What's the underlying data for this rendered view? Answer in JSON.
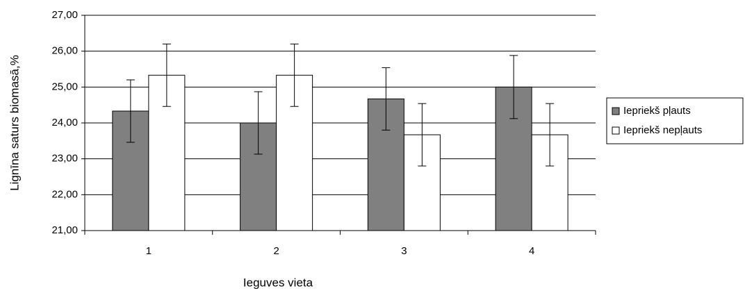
{
  "chart_data": {
    "type": "bar",
    "x_label": "Ieguves vieta",
    "y_label": "Lignīna saturs biomasā,%",
    "categories": [
      "1",
      "2",
      "3",
      "4"
    ],
    "series": [
      {
        "name": "Iepriekš pļauts",
        "color": "#808080",
        "values": [
          24.33,
          24.0,
          24.67,
          25.0
        ],
        "errors": [
          0.87,
          0.87,
          0.87,
          0.88
        ]
      },
      {
        "name": "Iepriekš nepļauts",
        "color": "#ffffff",
        "values": [
          25.33,
          25.33,
          23.67,
          23.67
        ],
        "errors": [
          0.87,
          0.87,
          0.87,
          0.87
        ]
      }
    ],
    "ylim": [
      21,
      27
    ],
    "yticks": [
      {
        "value": 21,
        "label": "21,00"
      },
      {
        "value": 22,
        "label": "22,00"
      },
      {
        "value": 23,
        "label": "23,00"
      },
      {
        "value": 24,
        "label": "24,00"
      },
      {
        "value": 25,
        "label": "25,00"
      },
      {
        "value": 26,
        "label": "26,00"
      },
      {
        "value": 27,
        "label": "27,00"
      }
    ],
    "grid": true,
    "legend": "right"
  }
}
